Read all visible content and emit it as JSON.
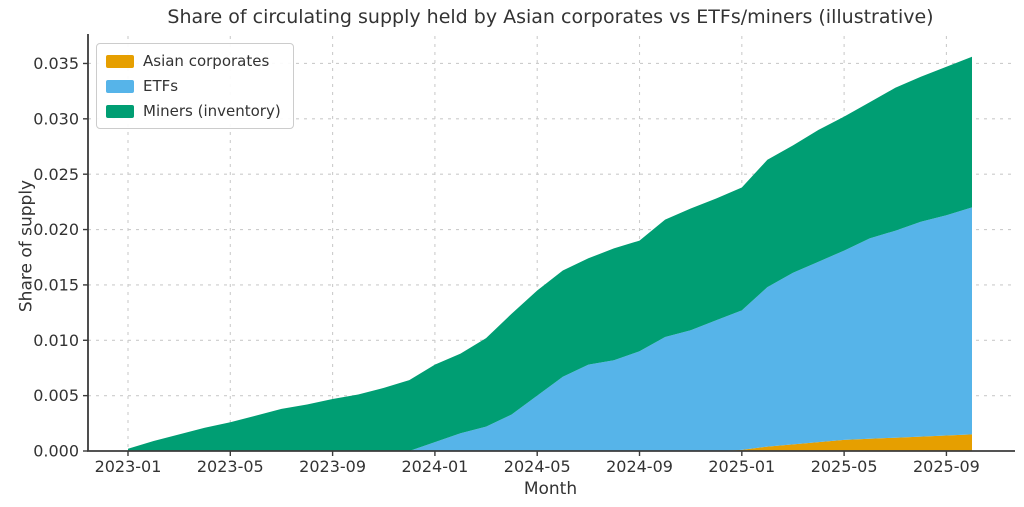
{
  "chart": {
    "title": "Share of circulating supply held by Asian corporates vs ETFs/miners (illustrative)",
    "xlabel": "Month",
    "ylabel": "Share of supply"
  },
  "chart_data": {
    "type": "area",
    "stacked": true,
    "title": "Share of circulating supply held by Asian corporates vs ETFs/miners (illustrative)",
    "xlabel": "Month",
    "ylabel": "Share of supply",
    "grid": true,
    "grid_style": "dashed",
    "legend_position": "upper-left",
    "ylim": [
      0,
      0.0373
    ],
    "yticks": [
      0.0,
      0.005,
      0.01,
      0.015,
      0.02,
      0.025,
      0.03,
      0.035
    ],
    "ytick_labels": [
      "0.000",
      "0.005",
      "0.010",
      "0.015",
      "0.020",
      "0.025",
      "0.030",
      "0.035"
    ],
    "xticks": [
      "2023-01",
      "2023-05",
      "2023-09",
      "2024-01",
      "2024-05",
      "2024-09",
      "2025-01",
      "2025-05",
      "2025-09"
    ],
    "x": [
      "2023-01",
      "2023-02",
      "2023-03",
      "2023-04",
      "2023-05",
      "2023-06",
      "2023-07",
      "2023-08",
      "2023-09",
      "2023-10",
      "2023-11",
      "2023-12",
      "2024-01",
      "2024-02",
      "2024-03",
      "2024-04",
      "2024-05",
      "2024-06",
      "2024-07",
      "2024-08",
      "2024-09",
      "2024-10",
      "2024-11",
      "2024-12",
      "2025-01",
      "2025-02",
      "2025-03",
      "2025-04",
      "2025-05",
      "2025-06",
      "2025-07",
      "2025-08",
      "2025-09",
      "2025-10"
    ],
    "series": [
      {
        "name": "Asian corporates",
        "color": "#E69F00",
        "values": [
          0,
          0,
          0,
          0,
          0,
          0,
          0,
          0,
          0,
          0,
          0,
          0,
          0,
          0,
          0,
          0,
          0,
          0,
          0,
          0,
          0,
          0,
          0,
          0,
          0.0001,
          0.0004,
          0.0006,
          0.0008,
          0.001,
          0.0011,
          0.0012,
          0.0013,
          0.0014,
          0.0015
        ]
      },
      {
        "name": "ETFs",
        "color": "#56B4E9",
        "values": [
          0,
          0,
          0,
          0,
          0,
          0,
          0,
          0,
          0,
          0,
          0,
          0,
          0.0008,
          0.0016,
          0.0022,
          0.0033,
          0.005,
          0.0067,
          0.0078,
          0.0082,
          0.009,
          0.0103,
          0.0109,
          0.0118,
          0.0126,
          0.0144,
          0.0155,
          0.0163,
          0.0171,
          0.0181,
          0.0187,
          0.0194,
          0.0199,
          0.0205
        ]
      },
      {
        "name": "Miners (inventory)",
        "color": "#009E73",
        "values": [
          0.0002,
          0.0009,
          0.0015,
          0.0021,
          0.0026,
          0.0032,
          0.0038,
          0.0042,
          0.0047,
          0.0051,
          0.0057,
          0.0064,
          0.007,
          0.0072,
          0.008,
          0.0091,
          0.0095,
          0.0096,
          0.0096,
          0.0101,
          0.01,
          0.0106,
          0.011,
          0.011,
          0.0111,
          0.0115,
          0.0115,
          0.0119,
          0.0121,
          0.0123,
          0.0129,
          0.0131,
          0.0134,
          0.0136
        ]
      }
    ],
    "style": {
      "grid_color": "#cccccc",
      "spine_color": "#3b3b3b",
      "text_color": "#333333",
      "background": "#ffffff"
    }
  }
}
